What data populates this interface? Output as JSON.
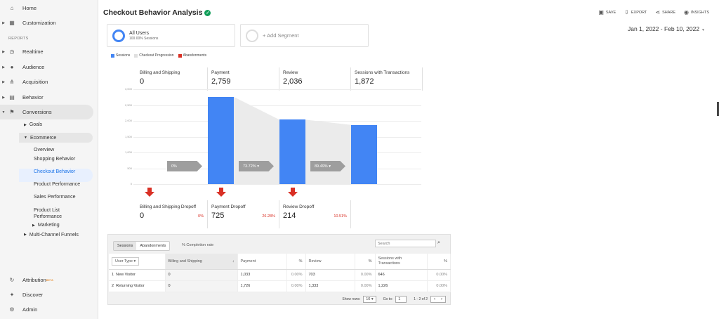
{
  "sidebar": {
    "home": "Home",
    "customization": "Customization",
    "reports_label": "REPORTS",
    "realtime": "Realtime",
    "audience": "Audience",
    "acquisition": "Acquisition",
    "behavior": "Behavior",
    "conversions": "Conversions",
    "goals": "Goals",
    "ecommerce": "Ecommerce",
    "overview": "Overview",
    "shopping_behavior": "Shopping Behavior",
    "checkout_behavior": "Checkout Behavior",
    "product_performance": "Product Performance",
    "sales_performance": "Sales Performance",
    "product_list_performance": "Product List Performance",
    "marketing": "Marketing",
    "multi_channel": "Multi-Channel Funnels",
    "attribution": "Attribution",
    "attribution_badge": "BETA",
    "discover": "Discover",
    "admin": "Admin"
  },
  "header": {
    "title": "Checkout Behavior Analysis",
    "save": "SAVE",
    "export": "EXPORT",
    "share": "SHARE",
    "insights": "INSIGHTS",
    "date_range": "Jan 1, 2022 - Feb 10, 2022"
  },
  "segments": {
    "all_users": "All Users",
    "all_users_sub": "100.00% Sessions",
    "add_segment": "+ Add Segment"
  },
  "legend": {
    "sessions": "Sessions",
    "checkout_progression": "Checkout Progression",
    "abandonments": "Abandonments",
    "colors": {
      "sessions": "#4285f4",
      "progression": "#e0e0e0",
      "abandonments": "#d93025"
    }
  },
  "funnel": {
    "steps": [
      {
        "label": "Billing and Shipping",
        "value": "0"
      },
      {
        "label": "Payment",
        "value": "2,759"
      },
      {
        "label": "Review",
        "value": "2,036"
      },
      {
        "label": "Sessions with Transactions",
        "value": "1,872"
      }
    ],
    "y_ticks": [
      "3,000",
      "2,500",
      "2,000",
      "1,500",
      "1,000",
      "500",
      "0"
    ],
    "conversion": [
      "0%",
      "73.72%",
      "89.49%"
    ],
    "dropoffs": [
      {
        "label": "Billing and Shipping Dropoff",
        "value": "0",
        "pct": "0%"
      },
      {
        "label": "Payment Dropoff",
        "value": "725",
        "pct": "26.28%"
      },
      {
        "label": "Review Dropoff",
        "value": "214",
        "pct": "10.51%"
      }
    ]
  },
  "table": {
    "tab_sessions": "Sessions",
    "tab_abandonments": "Abandonments",
    "completion_label": "% Completion rate",
    "search_placeholder": "Search",
    "headers": {
      "user_type": "User Type",
      "billing": "Billing and Shipping",
      "payment": "Payment",
      "pct": "%",
      "review": "Review",
      "sessions_tx": "Sessions with Transactions"
    },
    "rows": [
      {
        "idx": "1",
        "type": "New Visitor",
        "billing": "0",
        "payment": "1,033",
        "payment_pct": "0.00%",
        "review": "703",
        "review_pct": "0.00%",
        "tx": "646",
        "tx_pct": "0.00%"
      },
      {
        "idx": "2",
        "type": "Returning Visitor",
        "billing": "0",
        "payment": "1,726",
        "payment_pct": "0.00%",
        "review": "1,333",
        "review_pct": "0.00%",
        "tx": "1,226",
        "tx_pct": "0.00%"
      }
    ],
    "show_rows_label": "Show rows:",
    "show_rows_value": "10",
    "goto_label": "Go to:",
    "goto_value": "1",
    "page_info": "1 - 2 of 2"
  }
}
